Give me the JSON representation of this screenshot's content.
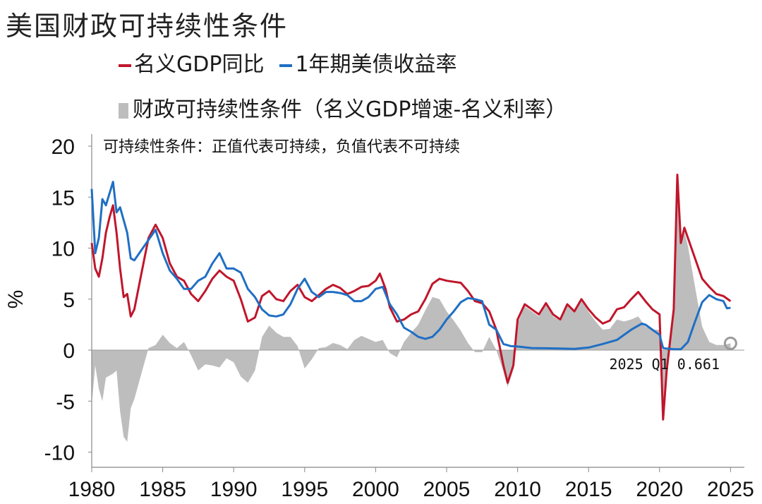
{
  "chart_data": {
    "type": "line",
    "title": "美国财政可持续性条件",
    "legend": [
      {
        "name": "名义GDP同比",
        "color": "#c0162b",
        "kind": "line"
      },
      {
        "name": "1年期美债收益率",
        "color": "#1f6fc4",
        "kind": "line"
      },
      {
        "name": "财政可持续性条件（名义GDP增速-名义利率）",
        "color": "#bdbdbd",
        "kind": "area"
      }
    ],
    "annotation_top": "可持续性条件：正值代表可持续，负值代表不可持续",
    "annotation_point": {
      "label": "2025 Q1  0.661",
      "x": 2025.0,
      "y": 0.661
    },
    "ylabel": "%",
    "xlim": [
      1980,
      2025.5
    ],
    "ylim": [
      -11,
      20
    ],
    "yticks": [
      -10,
      -5,
      0,
      5,
      10,
      15,
      20
    ],
    "xticks": [
      1980,
      1985,
      1990,
      1995,
      2000,
      2005,
      2010,
      2015,
      2020,
      2025
    ],
    "series": [
      {
        "name": "名义GDP同比",
        "color": "#c0162b",
        "points": [
          [
            1980.0,
            10.5
          ],
          [
            1980.25,
            8.0
          ],
          [
            1980.5,
            7.2
          ],
          [
            1980.75,
            9.0
          ],
          [
            1981.0,
            11.5
          ],
          [
            1981.25,
            13.0
          ],
          [
            1981.5,
            14.2
          ],
          [
            1981.75,
            11.5
          ],
          [
            1982.0,
            8.0
          ],
          [
            1982.25,
            5.2
          ],
          [
            1982.5,
            5.5
          ],
          [
            1982.75,
            3.3
          ],
          [
            1983.0,
            4.0
          ],
          [
            1983.5,
            7.5
          ],
          [
            1984.0,
            11.0
          ],
          [
            1984.5,
            12.3
          ],
          [
            1985.0,
            11.0
          ],
          [
            1985.5,
            8.5
          ],
          [
            1986.0,
            7.2
          ],
          [
            1986.5,
            6.8
          ],
          [
            1987.0,
            5.5
          ],
          [
            1987.5,
            4.8
          ],
          [
            1988.0,
            5.8
          ],
          [
            1988.5,
            7.0
          ],
          [
            1989.0,
            7.8
          ],
          [
            1989.5,
            7.2
          ],
          [
            1990.0,
            6.8
          ],
          [
            1990.5,
            5.0
          ],
          [
            1991.0,
            2.8
          ],
          [
            1991.5,
            3.2
          ],
          [
            1992.0,
            5.3
          ],
          [
            1992.5,
            5.8
          ],
          [
            1993.0,
            5.0
          ],
          [
            1993.5,
            4.8
          ],
          [
            1994.0,
            5.8
          ],
          [
            1994.5,
            6.4
          ],
          [
            1995.0,
            5.2
          ],
          [
            1995.5,
            4.8
          ],
          [
            1996.0,
            5.4
          ],
          [
            1996.5,
            6.0
          ],
          [
            1997.0,
            6.4
          ],
          [
            1997.5,
            6.1
          ],
          [
            1998.0,
            5.5
          ],
          [
            1998.5,
            5.8
          ],
          [
            1999.0,
            6.2
          ],
          [
            1999.5,
            6.3
          ],
          [
            2000.0,
            6.8
          ],
          [
            2000.3,
            7.5
          ],
          [
            2000.7,
            6.0
          ],
          [
            2001.0,
            4.2
          ],
          [
            2001.5,
            2.8
          ],
          [
            2002.0,
            3.0
          ],
          [
            2002.5,
            3.5
          ],
          [
            2003.0,
            3.8
          ],
          [
            2003.5,
            5.0
          ],
          [
            2004.0,
            6.5
          ],
          [
            2004.5,
            7.0
          ],
          [
            2005.0,
            6.8
          ],
          [
            2005.5,
            6.7
          ],
          [
            2006.0,
            6.6
          ],
          [
            2006.5,
            5.8
          ],
          [
            2007.0,
            4.8
          ],
          [
            2007.5,
            4.6
          ],
          [
            2008.0,
            3.8
          ],
          [
            2008.5,
            2.0
          ],
          [
            2009.0,
            -1.5
          ],
          [
            2009.3,
            -3.2
          ],
          [
            2009.7,
            -1.5
          ],
          [
            2010.0,
            3.0
          ],
          [
            2010.5,
            4.5
          ],
          [
            2011.0,
            4.0
          ],
          [
            2011.5,
            3.5
          ],
          [
            2012.0,
            4.6
          ],
          [
            2012.5,
            3.5
          ],
          [
            2013.0,
            3.0
          ],
          [
            2013.5,
            4.5
          ],
          [
            2014.0,
            3.8
          ],
          [
            2014.5,
            5.0
          ],
          [
            2015.0,
            4.0
          ],
          [
            2015.5,
            3.2
          ],
          [
            2016.0,
            2.6
          ],
          [
            2016.5,
            2.9
          ],
          [
            2017.0,
            4.0
          ],
          [
            2017.5,
            4.2
          ],
          [
            2018.0,
            5.0
          ],
          [
            2018.5,
            5.7
          ],
          [
            2019.0,
            4.8
          ],
          [
            2019.5,
            4.0
          ],
          [
            2020.0,
            3.5
          ],
          [
            2020.25,
            -6.8
          ],
          [
            2020.5,
            -2.0
          ],
          [
            2020.75,
            1.0
          ],
          [
            2021.0,
            4.0
          ],
          [
            2021.25,
            17.2
          ],
          [
            2021.5,
            10.5
          ],
          [
            2021.75,
            12.0
          ],
          [
            2022.0,
            11.0
          ],
          [
            2022.5,
            9.0
          ],
          [
            2023.0,
            7.0
          ],
          [
            2023.5,
            6.2
          ],
          [
            2024.0,
            5.5
          ],
          [
            2024.5,
            5.3
          ],
          [
            2025.0,
            4.8
          ]
        ]
      },
      {
        "name": "1年期美债收益率",
        "color": "#1f6fc4",
        "points": [
          [
            1980.0,
            15.8
          ],
          [
            1980.25,
            9.5
          ],
          [
            1980.5,
            11.0
          ],
          [
            1980.75,
            14.8
          ],
          [
            1981.0,
            14.2
          ],
          [
            1981.5,
            16.5
          ],
          [
            1981.75,
            13.5
          ],
          [
            1982.0,
            14.0
          ],
          [
            1982.5,
            11.5
          ],
          [
            1982.75,
            9.0
          ],
          [
            1983.0,
            8.8
          ],
          [
            1983.5,
            9.8
          ],
          [
            1984.0,
            10.8
          ],
          [
            1984.5,
            11.8
          ],
          [
            1985.0,
            9.5
          ],
          [
            1985.5,
            7.8
          ],
          [
            1986.0,
            7.0
          ],
          [
            1986.5,
            6.0
          ],
          [
            1987.0,
            6.0
          ],
          [
            1987.5,
            6.8
          ],
          [
            1988.0,
            7.2
          ],
          [
            1988.5,
            8.5
          ],
          [
            1989.0,
            9.5
          ],
          [
            1989.5,
            8.0
          ],
          [
            1990.0,
            8.0
          ],
          [
            1990.5,
            7.6
          ],
          [
            1991.0,
            6.0
          ],
          [
            1991.5,
            5.2
          ],
          [
            1992.0,
            4.0
          ],
          [
            1992.5,
            3.4
          ],
          [
            1993.0,
            3.3
          ],
          [
            1993.5,
            3.5
          ],
          [
            1994.0,
            4.5
          ],
          [
            1994.5,
            6.0
          ],
          [
            1995.0,
            7.0
          ],
          [
            1995.5,
            5.7
          ],
          [
            1996.0,
            5.2
          ],
          [
            1996.5,
            5.7
          ],
          [
            1997.0,
            5.7
          ],
          [
            1997.5,
            5.6
          ],
          [
            1998.0,
            5.4
          ],
          [
            1998.5,
            4.8
          ],
          [
            1999.0,
            4.8
          ],
          [
            1999.5,
            5.2
          ],
          [
            2000.0,
            6.0
          ],
          [
            2000.5,
            6.2
          ],
          [
            2001.0,
            4.5
          ],
          [
            2001.5,
            3.5
          ],
          [
            2002.0,
            2.2
          ],
          [
            2002.5,
            1.8
          ],
          [
            2003.0,
            1.3
          ],
          [
            2003.5,
            1.1
          ],
          [
            2004.0,
            1.3
          ],
          [
            2004.5,
            2.0
          ],
          [
            2005.0,
            3.0
          ],
          [
            2005.5,
            3.8
          ],
          [
            2006.0,
            4.7
          ],
          [
            2006.5,
            5.1
          ],
          [
            2007.0,
            5.0
          ],
          [
            2007.5,
            4.8
          ],
          [
            2008.0,
            2.5
          ],
          [
            2008.5,
            2.0
          ],
          [
            2009.0,
            0.6
          ],
          [
            2009.5,
            0.4
          ],
          [
            2010.0,
            0.35
          ],
          [
            2011.0,
            0.2
          ],
          [
            2012.0,
            0.18
          ],
          [
            2013.0,
            0.15
          ],
          [
            2014.0,
            0.12
          ],
          [
            2015.0,
            0.25
          ],
          [
            2016.0,
            0.6
          ],
          [
            2017.0,
            1.0
          ],
          [
            2018.0,
            2.0
          ],
          [
            2018.75,
            2.6
          ],
          [
            2019.0,
            2.5
          ],
          [
            2019.5,
            2.0
          ],
          [
            2020.0,
            1.5
          ],
          [
            2020.25,
            0.2
          ],
          [
            2020.5,
            0.15
          ],
          [
            2021.0,
            0.08
          ],
          [
            2021.5,
            0.08
          ],
          [
            2022.0,
            0.8
          ],
          [
            2022.5,
            2.8
          ],
          [
            2023.0,
            4.7
          ],
          [
            2023.5,
            5.4
          ],
          [
            2024.0,
            5.0
          ],
          [
            2024.5,
            4.8
          ],
          [
            2024.75,
            4.1
          ],
          [
            2025.0,
            4.15
          ]
        ]
      },
      {
        "name": "财政可持续性条件（名义GDP增速-名义利率）",
        "color": "#bdbdbd",
        "kind": "area",
        "points": [
          [
            1980.0,
            -5.3
          ],
          [
            1980.25,
            -1.5
          ],
          [
            1980.5,
            -3.8
          ],
          [
            1980.75,
            -5.0
          ],
          [
            1981.0,
            -2.7
          ],
          [
            1981.5,
            -2.3
          ],
          [
            1981.75,
            -2.0
          ],
          [
            1982.0,
            -6.0
          ],
          [
            1982.25,
            -8.5
          ],
          [
            1982.5,
            -9.0
          ],
          [
            1982.75,
            -5.7
          ],
          [
            1983.0,
            -4.8
          ],
          [
            1983.5,
            -2.3
          ],
          [
            1984.0,
            0.2
          ],
          [
            1984.5,
            0.5
          ],
          [
            1985.0,
            1.5
          ],
          [
            1985.5,
            0.7
          ],
          [
            1986.0,
            0.2
          ],
          [
            1986.5,
            0.8
          ],
          [
            1987.0,
            -0.5
          ],
          [
            1987.5,
            -2.0
          ],
          [
            1988.0,
            -1.4
          ],
          [
            1988.5,
            -1.5
          ],
          [
            1989.0,
            -1.7
          ],
          [
            1989.5,
            -0.8
          ],
          [
            1990.0,
            -1.2
          ],
          [
            1990.5,
            -2.6
          ],
          [
            1991.0,
            -3.2
          ],
          [
            1991.5,
            -2.0
          ],
          [
            1992.0,
            1.3
          ],
          [
            1992.5,
            2.4
          ],
          [
            1993.0,
            1.7
          ],
          [
            1993.5,
            1.3
          ],
          [
            1994.0,
            1.3
          ],
          [
            1994.5,
            0.4
          ],
          [
            1995.0,
            -1.8
          ],
          [
            1995.5,
            -0.9
          ],
          [
            1996.0,
            0.2
          ],
          [
            1996.5,
            0.3
          ],
          [
            1997.0,
            0.7
          ],
          [
            1997.5,
            0.5
          ],
          [
            1998.0,
            0.1
          ],
          [
            1998.5,
            1.0
          ],
          [
            1999.0,
            1.4
          ],
          [
            1999.5,
            1.1
          ],
          [
            2000.0,
            0.8
          ],
          [
            2000.5,
            1.0
          ],
          [
            2001.0,
            -0.3
          ],
          [
            2001.5,
            -0.7
          ],
          [
            2002.0,
            0.8
          ],
          [
            2002.5,
            1.7
          ],
          [
            2003.0,
            2.5
          ],
          [
            2003.5,
            3.9
          ],
          [
            2004.0,
            5.2
          ],
          [
            2004.5,
            5.0
          ],
          [
            2005.0,
            3.8
          ],
          [
            2005.5,
            2.9
          ],
          [
            2006.0,
            1.9
          ],
          [
            2006.5,
            0.7
          ],
          [
            2007.0,
            -0.2
          ],
          [
            2007.5,
            -0.2
          ],
          [
            2008.0,
            1.3
          ],
          [
            2008.5,
            0.0
          ],
          [
            2009.0,
            -2.1
          ],
          [
            2009.3,
            -3.6
          ],
          [
            2009.7,
            -1.9
          ],
          [
            2010.0,
            2.65
          ],
          [
            2010.5,
            4.3
          ],
          [
            2011.0,
            3.8
          ],
          [
            2011.5,
            3.3
          ],
          [
            2012.0,
            4.4
          ],
          [
            2012.5,
            3.3
          ],
          [
            2013.0,
            2.85
          ],
          [
            2013.5,
            4.4
          ],
          [
            2014.0,
            3.7
          ],
          [
            2014.5,
            4.9
          ],
          [
            2015.0,
            3.75
          ],
          [
            2015.5,
            2.8
          ],
          [
            2016.0,
            2.0
          ],
          [
            2016.5,
            2.1
          ],
          [
            2017.0,
            3.0
          ],
          [
            2017.5,
            2.8
          ],
          [
            2018.0,
            3.0
          ],
          [
            2018.5,
            3.3
          ],
          [
            2019.0,
            2.3
          ],
          [
            2019.5,
            2.0
          ],
          [
            2020.0,
            2.0
          ],
          [
            2020.25,
            -7.0
          ],
          [
            2020.5,
            -2.15
          ],
          [
            2020.75,
            0.9
          ],
          [
            2021.0,
            3.9
          ],
          [
            2021.25,
            17.1
          ],
          [
            2021.5,
            10.4
          ],
          [
            2021.75,
            11.6
          ],
          [
            2022.0,
            10.2
          ],
          [
            2022.5,
            6.2
          ],
          [
            2023.0,
            2.3
          ],
          [
            2023.5,
            0.8
          ],
          [
            2024.0,
            0.5
          ],
          [
            2024.5,
            0.5
          ],
          [
            2025.0,
            0.661
          ]
        ]
      }
    ]
  }
}
